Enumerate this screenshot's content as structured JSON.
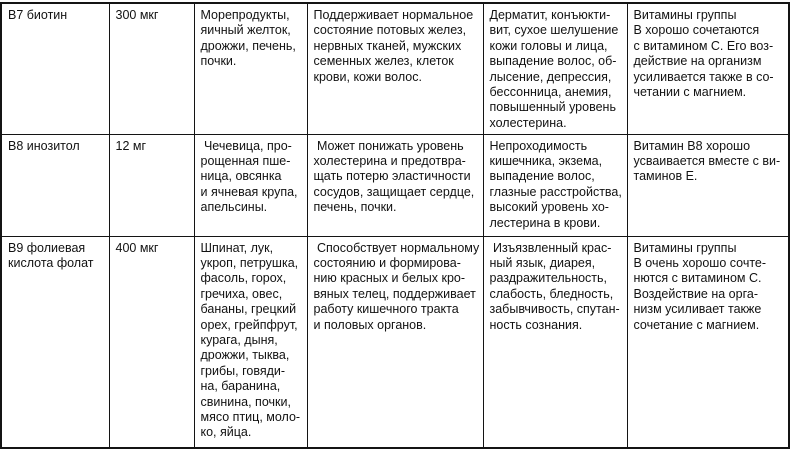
{
  "table": {
    "description": "Фрагмент таблицы о витаминах группы B (название, суточная доза, источники, действие, признаки дефицита, сочетаемость)",
    "rows": [
      {
        "vitamin": "В7 биотин",
        "dose": "300 мкг",
        "sources": "Морепродукты,\nяичный желток,\nдрожжи, печень,\nпочки.",
        "benefits": "Поддерживает нормальное\nсостояние потовых желез,\nнервных тканей, мужских\nсеменных желез, клеток\nкрови, кожи волос.",
        "deficiency": "Дерматит, конъюкти-\nвит, сухое шелушение\nкожи головы и лица,\nвыпадение волос, об-\nлысение, депрессия,\nбессонница, анемия,\nповышенный уровень\nхолестерина.",
        "interaction": "Витамины группы\nВ хорошо сочетаются\nс витамином С. Его воз-\nдействие на организм\nусиливается также в со-\nчетании с магнием."
      },
      {
        "vitamin": "В8 инозитол",
        "dose": "12 мг",
        "sources": " Чечевица, про-\nрощенная пше-\nница, овсянка\nи ячневая крупа,\nапельсины.",
        "benefits": " Может понижать уровень\nхолестерина и предотвра-\nщать потерю эластичности\nсосудов, защищает сердце,\nпечень, почки.",
        "deficiency": "Непроходимость\nкишечника, экзема,\nвыпадение волос,\nглазные расстройства,\nвысокий уровень хо-\nлестерина в крови.",
        "interaction": "Витамин В8 хорошо\nусваивается вместе с ви-\nтаминов Е."
      },
      {
        "vitamin": "В9 фолиевая\nкислота фолат",
        "dose": "400 мкг",
        "sources": "Шпинат, лук,\nукроп, петрушка,\nфасоль, горох,\nгречиха, овес,\nбананы, грецкий\nорех, грейпфрут,\nкурага, дыня,\nдрожжи, тыква,\nгрибы, говяди-\nна, баранина,\nсвинина, почки,\nмясо птиц, моло-\nко, яйца.",
        "benefits": " Способствует нормальному\nсостоянию и формирова-\nнию красных и белых кро-\nвяных телец, поддерживает\nработу кишечного тракта\nи половых органов.",
        "deficiency": " Изъязвленный крас-\nный язык, диарея,\nраздражительность,\nслабость, бледность,\nзабывчивость, спутан-\nность сознания.",
        "interaction": "Витамины группы\nВ очень хорошо сочте-\nнются с витамином С.\nВоздействие на орга-\nнизм усиливает также\nсочетание с магнием."
      }
    ]
  }
}
